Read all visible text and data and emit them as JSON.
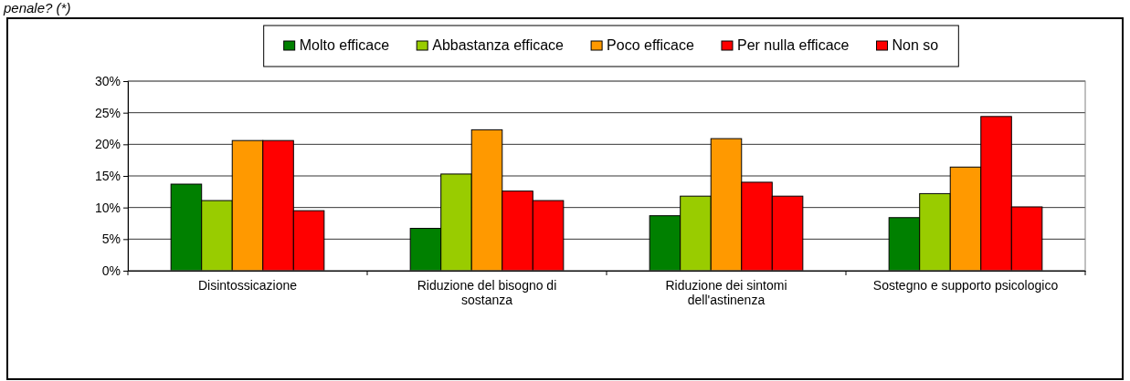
{
  "chart_data": {
    "type": "bar",
    "title": "penale? (*)",
    "categories": [
      "Disintossicazione",
      "Riduzione del bisogno di sostanza",
      "Riduzione dei sintomi dell'astinenza",
      "Sostegno e supporto psicologico"
    ],
    "series": [
      {
        "name": "Molto efficace",
        "color": "#008000",
        "values": [
          13.7,
          6.7,
          8.7,
          8.4
        ]
      },
      {
        "name": "Abbastanza efficace",
        "color": "#99cc00",
        "values": [
          11.1,
          15.3,
          11.8,
          12.2
        ]
      },
      {
        "name": "Poco efficace",
        "color": "#ff9900",
        "values": [
          20.6,
          22.3,
          20.9,
          16.4
        ]
      },
      {
        "name": "Per nulla efficace",
        "color": "#ff0000",
        "values": [
          20.6,
          12.6,
          14.0,
          24.4
        ]
      },
      {
        "name": "Non so",
        "color": "#ff0000",
        "values": [
          9.5,
          11.1,
          11.8,
          10.1
        ]
      }
    ],
    "ylim": [
      0,
      30
    ],
    "yticks": [
      {
        "value": 0,
        "label": "0%"
      },
      {
        "value": 5,
        "label": "5%"
      },
      {
        "value": 10,
        "label": "10%"
      },
      {
        "value": 15,
        "label": "15%"
      },
      {
        "value": 20,
        "label": "20%"
      },
      {
        "value": 25,
        "label": "25%"
      },
      {
        "value": 30,
        "label": "30%"
      }
    ],
    "grid": "y",
    "legend": "top"
  }
}
